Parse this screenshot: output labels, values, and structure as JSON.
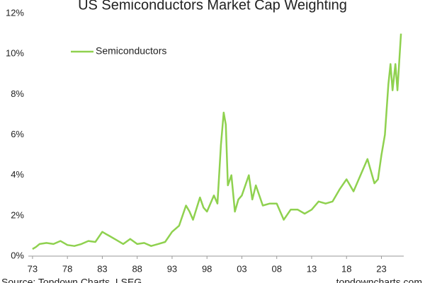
{
  "chart_data": {
    "type": "line",
    "title": "US Semiconductors Market Cap Weighting",
    "source": "Source: Topdown Charts, LSEG",
    "watermark": "topdowncharts.com",
    "x": [
      1973,
      1973.5,
      1974,
      1975,
      1976,
      1977,
      1978,
      1979,
      1980,
      1981,
      1982,
      1983,
      1983.5,
      1984,
      1985,
      1986,
      1987,
      1988,
      1989,
      1990,
      1991,
      1992,
      1993,
      1994,
      1995,
      1995.5,
      1996,
      1997,
      1997.5,
      1998,
      1999,
      1999.5,
      2000,
      2000.4,
      2000.7,
      2001,
      2001.5,
      2002,
      2002.5,
      2003,
      2004,
      2004.5,
      2005,
      2006,
      2007,
      2008,
      2009,
      2010,
      2011,
      2012,
      2013,
      2014,
      2015,
      2016,
      2017,
      2018,
      2019,
      2020,
      2021,
      2022,
      2022.5,
      2023,
      2023.5,
      2024,
      2024.3,
      2024.6,
      2025,
      2025.3,
      2025.8
    ],
    "series": [
      {
        "name": "Semiconductors",
        "color": "#8fd14f",
        "values": [
          0.35,
          0.45,
          0.6,
          0.65,
          0.6,
          0.75,
          0.55,
          0.5,
          0.6,
          0.75,
          0.7,
          1.2,
          1.1,
          1.0,
          0.8,
          0.6,
          0.85,
          0.6,
          0.65,
          0.5,
          0.6,
          0.7,
          1.2,
          1.5,
          2.5,
          2.2,
          1.8,
          2.9,
          2.4,
          2.2,
          3.0,
          2.6,
          5.5,
          7.1,
          6.5,
          3.5,
          4.0,
          2.2,
          2.8,
          3.0,
          4.0,
          2.8,
          3.5,
          2.5,
          2.6,
          2.6,
          1.8,
          2.3,
          2.3,
          2.1,
          2.3,
          2.7,
          2.6,
          2.7,
          3.3,
          3.8,
          3.2,
          4.0,
          4.8,
          3.6,
          3.8,
          5.0,
          6.0,
          8.5,
          9.5,
          8.2,
          9.5,
          8.2,
          11.0
        ]
      }
    ],
    "xlim": [
      1972.4,
      2026.2
    ],
    "xticks": [
      {
        "value": 1973,
        "label": "73"
      },
      {
        "value": 1978,
        "label": "78"
      },
      {
        "value": 1983,
        "label": "83"
      },
      {
        "value": 1988,
        "label": "88"
      },
      {
        "value": 1993,
        "label": "93"
      },
      {
        "value": 1998,
        "label": "98"
      },
      {
        "value": 2003,
        "label": "03"
      },
      {
        "value": 2008,
        "label": "08"
      },
      {
        "value": 2013,
        "label": "13"
      },
      {
        "value": 2018,
        "label": "18"
      },
      {
        "value": 2023,
        "label": "23"
      }
    ],
    "ylim": [
      0,
      12
    ],
    "yticks": [
      {
        "value": 0,
        "label": "0%"
      },
      {
        "value": 2,
        "label": "2%"
      },
      {
        "value": 4,
        "label": "4%"
      },
      {
        "value": 6,
        "label": "6%"
      },
      {
        "value": 8,
        "label": "8%"
      },
      {
        "value": 10,
        "label": "10%"
      },
      {
        "value": 12,
        "label": "12%"
      }
    ],
    "grid": false,
    "legend": "upper left"
  }
}
